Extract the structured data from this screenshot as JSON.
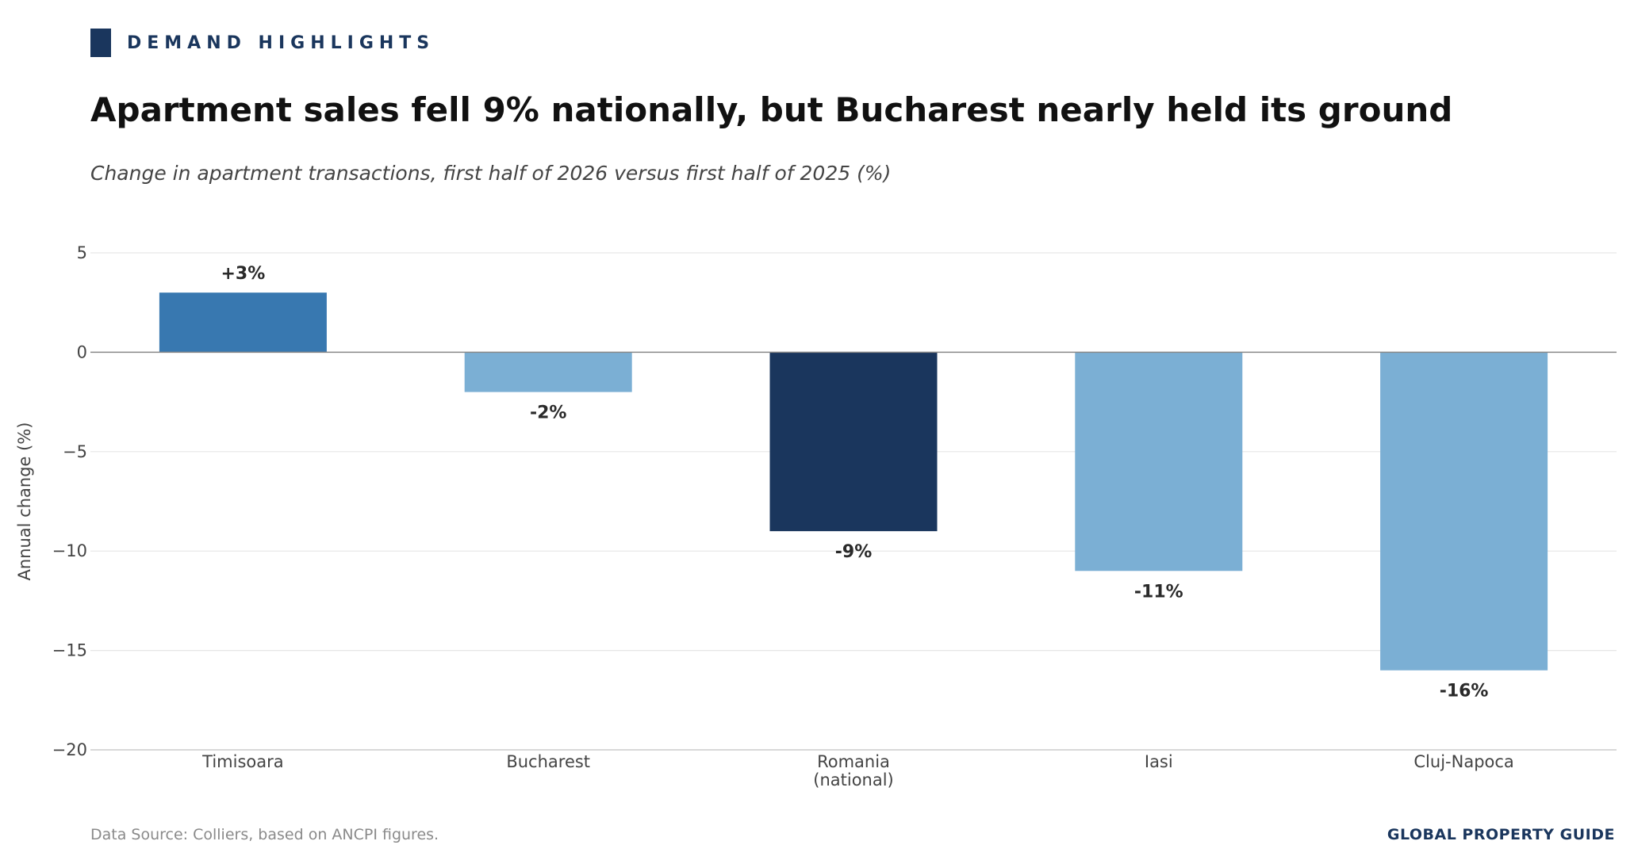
{
  "header": {
    "kicker": "DEMAND HIGHLIGHTS",
    "title": "Apartment sales fell 9% nationally, but Bucharest nearly held its ground",
    "subtitle": "Change in apartment transactions, first half of 2026 versus first half of 2025 (%)"
  },
  "footer": {
    "source": "Data Source: Colliers, based on ANCPI figures.",
    "brand": "GLOBAL PROPERTY GUIDE"
  },
  "colors": {
    "accent": "#1a365d",
    "positive": "#3878b0",
    "negative": "#7bafd4",
    "national": "#1a365d"
  },
  "chart_data": {
    "type": "bar",
    "categories": [
      "Timisoara",
      "Bucharest",
      "Romania\n(national)",
      "Iasi",
      "Cluj-Napoca"
    ],
    "values": [
      3,
      -2,
      -9,
      -11,
      -16
    ],
    "data_labels": [
      "+3%",
      "-2%",
      "-9%",
      "-11%",
      "-16%"
    ],
    "bar_colors": [
      "#3878b0",
      "#7bafd4",
      "#1a365d",
      "#7bafd4",
      "#7bafd4"
    ],
    "xlabel": "",
    "ylabel": "Annual change (%)",
    "ylim": [
      -20,
      6
    ],
    "yticks": [
      5,
      0,
      -5,
      -10,
      -15,
      -20
    ],
    "ytick_labels": [
      "5",
      "0",
      "−5",
      "−10",
      "−15",
      "−20"
    ],
    "grid": true
  }
}
